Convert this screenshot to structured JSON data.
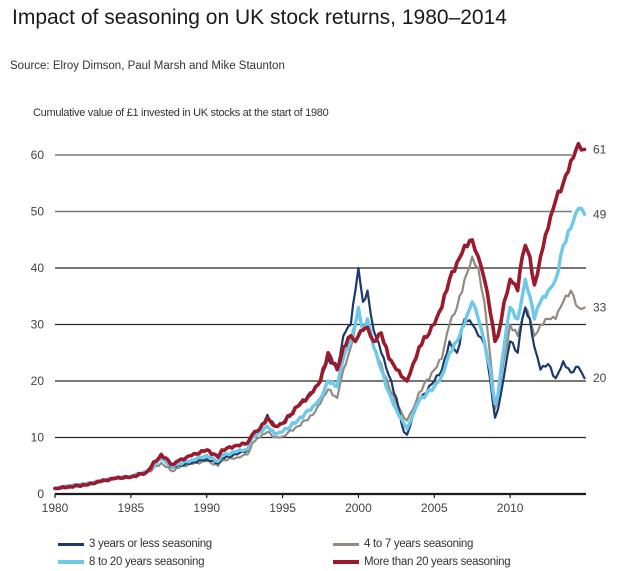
{
  "header": {
    "title": "Impact of seasoning on UK stock returns, 1980–2014",
    "source": "Source: Elroy Dimson, Paul Marsh and Mike Staunton"
  },
  "chart_data": {
    "type": "line",
    "title": "Impact of seasoning on UK stock returns, 1980–2014",
    "subtitle": "Cumulative value of £1 invested in UK stocks at the start of 1980",
    "xlabel": "",
    "ylabel": "",
    "xlim": [
      1980,
      2015
    ],
    "ylim": [
      0,
      60
    ],
    "x_ticks": [
      1980,
      1985,
      1990,
      1995,
      2000,
      2005,
      2010
    ],
    "y_ticks": [
      0,
      10,
      20,
      30,
      40,
      50,
      60
    ],
    "grid": true,
    "legend_position": "bottom",
    "series": [
      {
        "name": "3 years or less seasoning",
        "color": "#1b3a6b",
        "end_label": "20",
        "x": [
          1980,
          1981,
          1982,
          1983,
          1984,
          1985,
          1986,
          1987,
          1987.75,
          1988,
          1989,
          1990,
          1990.75,
          1991,
          1992,
          1992.7,
          1993,
          1993.5,
          1994,
          1994.5,
          1995,
          1996,
          1997,
          1997.5,
          1998,
          1998.6,
          1999,
          1999.5,
          1999.8,
          2000,
          2000.3,
          2000.6,
          2001,
          2001.5,
          2002,
          2002.5,
          2003,
          2003.2,
          2003.6,
          2004,
          2005,
          2005.5,
          2006,
          2006.5,
          2007,
          2007.5,
          2007.9,
          2008.3,
          2008.7,
          2009.0,
          2009.2,
          2009.6,
          2010,
          2010.5,
          2010.8,
          2011,
          2011.3,
          2011.6,
          2012,
          2012.5,
          2013,
          2013.5,
          2014,
          2014.5,
          2014.9
        ],
        "values": [
          1,
          1.5,
          1.8,
          2.4,
          2.9,
          3.2,
          4.0,
          6.4,
          4.6,
          4.9,
          5.5,
          6.2,
          5.4,
          6.3,
          7.0,
          7.8,
          10.0,
          11.5,
          14.0,
          12.0,
          12.5,
          15.5,
          18.0,
          20.5,
          24.0,
          22.0,
          28.0,
          30.0,
          36.0,
          40.0,
          34.0,
          36.0,
          29.0,
          25.0,
          21.0,
          17.0,
          11.0,
          10.5,
          14.0,
          16.5,
          20.0,
          22.0,
          27.0,
          25.0,
          31.0,
          30.0,
          28.0,
          26.5,
          20.0,
          13.5,
          15.0,
          21.0,
          27.0,
          25.0,
          31.0,
          33.0,
          31.0,
          26.0,
          22.0,
          23.0,
          20.5,
          23.5,
          21.5,
          22.5,
          20.5
        ]
      },
      {
        "name": "4 to 7 years seasoning",
        "color": "#948a80",
        "end_label": "33",
        "x": [
          1980,
          1981,
          1982,
          1983,
          1984,
          1985,
          1986,
          1987,
          1987.75,
          1988,
          1989,
          1990,
          1990.75,
          1991,
          1992,
          1992.7,
          1993,
          1993.5,
          1994,
          1994.5,
          1995,
          1996,
          1997,
          1997.5,
          1998,
          1998.6,
          1999,
          1999.5,
          1999.8,
          2000,
          2000.3,
          2000.6,
          2001,
          2001.5,
          2002,
          2002.5,
          2003,
          2003.2,
          2003.6,
          2004,
          2005,
          2005.5,
          2006,
          2006.5,
          2007,
          2007.5,
          2007.9,
          2008.3,
          2008.7,
          2009.0,
          2009.2,
          2009.6,
          2010,
          2010.5,
          2010.8,
          2011,
          2011.3,
          2011.6,
          2012,
          2012.5,
          2013,
          2013.5,
          2014,
          2014.5,
          2014.9
        ],
        "values": [
          1,
          1.6,
          1.7,
          2.3,
          2.7,
          3.0,
          3.6,
          5.5,
          4.0,
          4.6,
          5.3,
          5.8,
          5.0,
          5.9,
          6.5,
          7.0,
          9.0,
          10.0,
          11.0,
          10.0,
          10.2,
          12.0,
          14.0,
          16.0,
          18.5,
          17.0,
          22.0,
          26.0,
          30.0,
          32.0,
          29.0,
          30.0,
          26.0,
          23.0,
          19.0,
          16.0,
          13.5,
          13.0,
          15.0,
          18.0,
          22.0,
          24.0,
          30.0,
          33.0,
          38.0,
          42.0,
          40.0,
          34.0,
          24.0,
          15.0,
          17.0,
          24.0,
          30.0,
          28.0,
          31.0,
          33.0,
          31.0,
          28.0,
          30.0,
          31.0,
          31.0,
          34.0,
          36.0,
          33.0,
          33.0
        ]
      },
      {
        "name": "8 to 20 years seasoning",
        "color": "#6ec8e8",
        "end_label": "49",
        "x": [
          1980,
          1981,
          1982,
          1983,
          1984,
          1985,
          1986,
          1987,
          1987.75,
          1988,
          1989,
          1990,
          1990.75,
          1991,
          1992,
          1992.7,
          1993,
          1993.5,
          1994,
          1994.5,
          1995,
          1996,
          1997,
          1997.5,
          1998,
          1998.6,
          1999,
          1999.5,
          1999.8,
          2000,
          2000.3,
          2000.6,
          2001,
          2001.5,
          2002,
          2002.5,
          2003,
          2003.2,
          2003.6,
          2004,
          2005,
          2005.5,
          2006,
          2006.5,
          2007,
          2007.5,
          2007.9,
          2008.3,
          2008.7,
          2009.0,
          2009.2,
          2009.6,
          2010,
          2010.5,
          2010.8,
          2011,
          2011.3,
          2011.6,
          2012,
          2012.5,
          2013,
          2013.5,
          2014,
          2014.5,
          2014.9
        ],
        "values": [
          1,
          1.4,
          1.7,
          2.3,
          2.8,
          3.1,
          3.9,
          6.2,
          4.8,
          5.2,
          6.0,
          6.8,
          5.8,
          6.8,
          7.5,
          8.0,
          10.0,
          11.0,
          12.0,
          10.5,
          11.0,
          13.0,
          15.5,
          17.0,
          20.0,
          19.0,
          24.0,
          27.0,
          30.0,
          33.0,
          29.0,
          31.0,
          26.0,
          22.0,
          18.0,
          15.0,
          12.5,
          11.5,
          14.0,
          16.5,
          19.0,
          21.0,
          25.0,
          27.0,
          30.0,
          34.0,
          31.0,
          27.0,
          22.0,
          16.0,
          17.5,
          26.0,
          33.0,
          31.0,
          35.0,
          38.0,
          35.0,
          31.0,
          34.0,
          36.0,
          38.0,
          44.0,
          47.0,
          50.5,
          49.5
        ]
      },
      {
        "name": "More than 20 years seasoning",
        "color": "#9b1b2e",
        "end_label": "61",
        "x": [
          1980,
          1981,
          1982,
          1983,
          1984,
          1985,
          1986,
          1987,
          1987.75,
          1988,
          1989,
          1990,
          1990.75,
          1991,
          1992,
          1992.7,
          1993,
          1993.5,
          1994,
          1994.5,
          1995,
          1996,
          1997,
          1997.5,
          1998,
          1998.6,
          1999,
          1999.5,
          1999.8,
          2000,
          2000.3,
          2000.6,
          2001,
          2001.5,
          2002,
          2002.5,
          2003,
          2003.2,
          2003.6,
          2004,
          2005,
          2005.5,
          2006,
          2006.5,
          2007,
          2007.5,
          2007.9,
          2008.3,
          2008.7,
          2009.0,
          2009.2,
          2009.6,
          2010,
          2010.5,
          2010.8,
          2011,
          2011.3,
          2011.6,
          2012,
          2012.5,
          2013,
          2013.5,
          2014,
          2014.5,
          2014.9
        ],
        "values": [
          1,
          1.3,
          1.6,
          2.2,
          2.8,
          3.0,
          3.8,
          7.0,
          5.2,
          5.7,
          6.8,
          7.8,
          6.5,
          7.8,
          8.6,
          9.0,
          10.5,
          11.5,
          13.5,
          12.0,
          12.5,
          15.5,
          18.0,
          20.0,
          25.0,
          22.0,
          26.0,
          28.0,
          27.0,
          28.0,
          29.0,
          29.5,
          27.0,
          28.5,
          24.0,
          22.0,
          20.5,
          20.0,
          23.0,
          26.0,
          30.0,
          33.0,
          38.0,
          41.0,
          44.0,
          45.0,
          42.0,
          38.0,
          32.0,
          27.0,
          28.0,
          34.0,
          38.0,
          36.0,
          42.0,
          44.0,
          42.0,
          37.0,
          42.0,
          47.0,
          52.0,
          55.0,
          59.0,
          62.0,
          61.0
        ]
      }
    ]
  }
}
